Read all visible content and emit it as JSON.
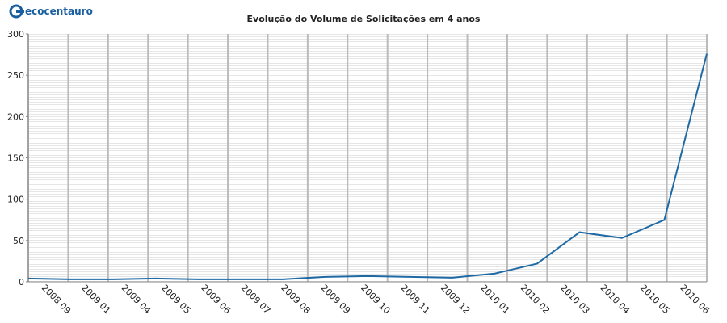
{
  "logo": "ecocentauro",
  "chart_data": {
    "type": "line",
    "title": "Evolução do Volume de Solicitações em 4 anos",
    "categories": [
      "2008 09",
      "2009 01",
      "2009 04",
      "2009 05",
      "2009 06",
      "2009 07",
      "2009 08",
      "2009 09",
      "2009 10",
      "2009 11",
      "2009 12",
      "2010 01",
      "2010 02",
      "2010 03",
      "2010 04",
      "2010 05",
      "2010 06"
    ],
    "series": [
      {
        "name": "Solicitações",
        "color": "#1f6aa5",
        "values": [
          4,
          3,
          3,
          4,
          3,
          3,
          3,
          6,
          7,
          6,
          5,
          10,
          22,
          60,
          53,
          75,
          276
        ]
      }
    ],
    "ylim": [
      0,
      300
    ],
    "yticks": [
      0,
      50,
      100,
      150,
      200,
      250,
      300
    ],
    "grid": true
  }
}
